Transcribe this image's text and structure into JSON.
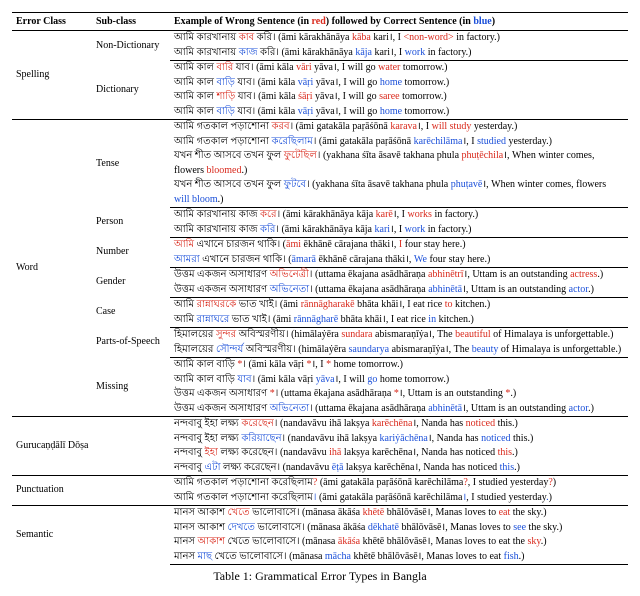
{
  "header": {
    "error_class": "Error Class",
    "sub_class": "Sub-class",
    "example": "Example of Wrong Sentence (in ",
    "red": "red",
    "example2": ") followed by Correct Sentence (in ",
    "blue": "blue",
    "example3": ")"
  },
  "caption": "Table 1: Grammatical Error Types in Bangla",
  "rows": {
    "r1c1": "Spelling",
    "r1c2": "Non-Dictionary",
    "r1e1a": "আমি কারখানায় ",
    "r1e1red": "কাব",
    "r1e1b": " করি। (āmi kārakhānāya ",
    "r1e1redlat": "kāba",
    "r1e1c": " kari।, I ",
    "r1e1reden": "<non-word>",
    "r1e1d": " in factory.)",
    "r1e2a": "আমি কারখানায় ",
    "r1e2blue": "কাজ",
    "r1e2b": " করি। (āmi kārakhānāya ",
    "r1e2bluelat": "kāja",
    "r1e2c": " kari।, I ",
    "r1e2blueen": "work",
    "r1e2d": " in factory.)",
    "r2c2": "Dictionary",
    "r2e1a": "আমি কাল ",
    "r2e1red": "বারি",
    "r2e1b": " যাব। (āmi kāla ",
    "r2e1redlat": "vāri",
    "r2e1c": " yāva।, I will go ",
    "r2e1reden": "water",
    "r2e1d": " tomorrow.)",
    "r2e2a": "আমি কাল ",
    "r2e2blue": "বাড়ি",
    "r2e2b": " যাব। (āmi kāla ",
    "r2e2bluelat": "vāṛi",
    "r2e2c": " yāva।, I will go ",
    "r2e2blueen": "home",
    "r2e2d": " tomorrow.)",
    "r2e3a": "আমি কাল ",
    "r2e3red": "শাড়ি",
    "r2e3b": " যাব। (āmi kāla ",
    "r2e3redlat": "śāṛi",
    "r2e3c": " yāva।, I will go ",
    "r2e3reden": "saree",
    "r2e3d": " tomorrow.)",
    "r2e4a": "আমি কাল ",
    "r2e4blue": "বাড়ি",
    "r2e4b": " যাব। (āmi kāla ",
    "r2e4bluelat": "vāṛi",
    "r2e4c": " yāva।, I will go ",
    "r2e4blueen": "home",
    "r2e4d": " tomorrow.)",
    "r3c1": "Word",
    "r3c2": "Tense",
    "r3e1a": "আমি গতকাল পড়াশোনা ",
    "r3e1red": "করব",
    "r3e1b": "। (āmi gatakāla paṛāśōnā ",
    "r3e1redlat": "karava",
    "r3e1c": "।, I ",
    "r3e1reden": "will study",
    "r3e1d": " yesterday.)",
    "r3e2a": "আমি গতকাল পড়াশোনা ",
    "r3e2blue": "করেছিলাম",
    "r3e2b": "। (āmi gatakāla paṛāśōnā ",
    "r3e2bluelat": "karēchilāma",
    "r3e2c": "।, I ",
    "r3e2blueen": "studied",
    "r3e2d": " yesterday.)",
    "r3e3a": "যখন শীত আসবে তখন ফুল ",
    "r3e3red": "ফুটেছিল",
    "r3e3b": "। (yakhana śīta āsavē takhana phula ",
    "r3e3redlat": "phuṭēchila",
    "r3e3c": "।, When winter comes, flowers ",
    "r3e3reden": "bloomed",
    "r3e3d": ".)",
    "r3e4a": "যখন শীত আসবে তখন ফুল ",
    "r3e4blue": "ফুটবে",
    "r3e4b": "। (yakhana śīta āsavē takhana phula ",
    "r3e4bluelat": "phuṭavē",
    "r3e4c": "।, When winter comes, flowers ",
    "r3e4blueen": "will bloom",
    "r3e4d": ".)",
    "r4c2": "Person",
    "r4e1a": "আমি কারখানায় কাজ ",
    "r4e1red": "করে",
    "r4e1b": "। (āmi kārakhānāya kāja ",
    "r4e1redlat": "karē",
    "r4e1c": "।, I ",
    "r4e1reden": "works",
    "r4e1d": " in factory.)",
    "r4e2a": "আমি কারখানায় কাজ ",
    "r4e2blue": "করি",
    "r4e2b": "। (āmi kārakhānāya kāja ",
    "r4e2bluelat": "kari",
    "r4e2c": "।, I ",
    "r4e2blueen": "work",
    "r4e2d": " in factory.)",
    "r5c2": "Number",
    "r5e1a": "",
    "r5e1red": "আমি",
    "r5e1b": " এখানে চারজন থাকি। (",
    "r5e1redlat": "āmi",
    "r5e1c": " ēkhānē cārajana thāki।, ",
    "r5e1reden": "I",
    "r5e1d": " four stay here.)",
    "r5e2a": "",
    "r5e2blue": "আমরা",
    "r5e2b": " এখানে চারজন থাকি। (",
    "r5e2bluelat": "āmarā",
    "r5e2c": " ēkhānē cārajana thāki।, ",
    "r5e2blueen": "We",
    "r5e2d": " four stay here.)",
    "r6c2": "Gender",
    "r6e1a": "উত্তম একজন অসাধারণ ",
    "r6e1red": "অভিনেত্রী",
    "r6e1b": "। (uttama ēkajana asādhāraṇa ",
    "r6e1redlat": "abhinētrī",
    "r6e1c": "।, Uttam is an outstanding ",
    "r6e1reden": "actress",
    "r6e1d": ".)",
    "r6e2a": "উত্তম একজন অসাধারণ ",
    "r6e2blue": "অভিনেতা",
    "r6e2b": "। (uttama ēkajana asādhāraṇa ",
    "r6e2bluelat": "abhinētā",
    "r6e2c": "।, Uttam is an outstanding ",
    "r6e2blueen": "actor",
    "r6e2d": ".)",
    "r7c2": "Case",
    "r7e1a": "আমি ",
    "r7e1red": "রান্নাঘরকে",
    "r7e1b": " ভাত খাই। (āmi ",
    "r7e1redlat": "rānnāgharakē",
    "r7e1c": " bhāta khāi।, I eat rice ",
    "r7e1reden": "to",
    "r7e1d": " kitchen.)",
    "r7e2a": "আমি ",
    "r7e2blue": "রান্নাঘরে",
    "r7e2b": " ভাত খাই। (āmi ",
    "r7e2bluelat": "rānnāgharē",
    "r7e2c": " bhāta khāi।, I eat rice ",
    "r7e2blueen": "in",
    "r7e2d": " kitchen.)",
    "r8c2": "Parts-of-Speech",
    "r8e1a": "হিমালয়ের ",
    "r8e1red": "সুন্দর",
    "r8e1b": " অবিস্মরণীয়। (himālaẏēra ",
    "r8e1redlat": "sundara",
    "r8e1c": " abismaraṇīẏa।, The ",
    "r8e1reden": "beautiful",
    "r8e1d": " of Himalaya is unforgettable.)",
    "r8e2a": "হিমালয়ের ",
    "r8e2blue": "সৌন্দর্য",
    "r8e2b": " অবিস্মরণীয়। (himālaẏēra ",
    "r8e2bluelat": "saundarya",
    "r8e2c": " abismaraṇīẏa।, The ",
    "r8e2blueen": "beauty",
    "r8e2d": " of Himalaya is unforgettable.)",
    "r9c2": "Missing",
    "r9e1a": "আমি কাল বাড়ি ",
    "r9e1red": "*",
    "r9e1b": "। (āmi kāla vāṛi ",
    "r9e1redlat": "*",
    "r9e1c": "।, I ",
    "r9e1reden": "*",
    "r9e1d": " home tomorrow.)",
    "r9e2a": "আমি কাল বাড়ি ",
    "r9e2blue": "যাব",
    "r9e2b": "। (āmi kāla vāṛi ",
    "r9e2bluelat": "yāva",
    "r9e2c": "।, I will ",
    "r9e2blueen": "go",
    "r9e2d": " home tomorrow.)",
    "r9e3a": "উত্তম একজন অসাধারণ ",
    "r9e3red": "*",
    "r9e3b": "। (uttama ēkajana asādhāraṇa ",
    "r9e3redlat": "*",
    "r9e3c": "।, Uttam is an outstanding ",
    "r9e3reden": "*",
    "r9e3d": ".)",
    "r9e4a": "উত্তম একজন অসাধারণ ",
    "r9e4blue": "অভিনেতা",
    "r9e4b": "। (uttama ēkajana asādhāraṇa ",
    "r9e4bluelat": "abhinētā",
    "r9e4c": "।, Uttam is an outstanding ",
    "r9e4blueen": "actor",
    "r9e4d": ".)",
    "r10c1": "Gurucaṇḍālī  Dōṣa",
    "r10e1a": "নন্দবাবু ইহা লক্ষ্য ",
    "r10e1red": "করেছেন",
    "r10e1b": "। (nandavāvu ihā lakṣya ",
    "r10e1redlat": "karēchēna",
    "r10e1c": "।, Nanda has ",
    "r10e1reden": "noticed",
    "r10e1d": " this.)",
    "r10e2a": "নন্দবাবু ইহা লক্ষ্য ",
    "r10e2blue": "করিয়াছেন",
    "r10e2b": "। (nandavāvu ihā lakṣya ",
    "r10e2bluelat": "kariẏāchēna",
    "r10e2c": "।, Nanda has ",
    "r10e2blueen": "noticed",
    "r10e2d": " this.)",
    "r10e3a": "নন্দবাবু ",
    "r10e3red": "ইহা",
    "r10e3b": " লক্ষ্য করেছেন। (nandavāvu ",
    "r10e3redlat": "ihā",
    "r10e3c": " lakṣya karēchēna।, Nanda has noticed ",
    "r10e3reden": "this",
    "r10e3d": ".)",
    "r10e4a": "নন্দবাবু ",
    "r10e4blue": "এটা",
    "r10e4b": " লক্ষ্য করেছেন। (nandavāvu ",
    "r10e4bluelat": "ēṭā",
    "r10e4c": " lakṣya karēchēna।, Nanda has noticed ",
    "r10e4blueen": "this",
    "r10e4d": ".)",
    "r11c1": "Punctuation",
    "r11e1a": "আমি গতকাল পড়াশোনা করেছিলাম",
    "r11e1red": "?",
    "r11e1b": " (āmi gatakāla paṛāśōnā karēchilāma",
    "r11e1redlat": "?",
    "r11e1c": ", I studied yesterday",
    "r11e1reden": "?",
    "r11e1d": ")",
    "r11e2a": "আমি গতকাল পড়াশোনা করেছিলাম",
    "r11e2blue": "।",
    "r11e2b": " (āmi gatakāla paṛāśōnā karēchilāma",
    "r11e2bluelat": "।",
    "r11e2c": ", I studied yesterday",
    "r11e2blueen": ".",
    "r11e2d": ")",
    "r12c1": "Semantic",
    "r12e1a": "মানস আকাশ ",
    "r12e1red": "খেতে",
    "r12e1b": " ভালোবাসে। (mānasa ākāśa ",
    "r12e1redlat": "khētē",
    "r12e1c": " bhālōvāsē।, Manas loves to ",
    "r12e1reden": "eat",
    "r12e1d": " the sky.)",
    "r12e2a": "মানস আকাশ ",
    "r12e2blue": "দেখতে",
    "r12e2b": " ভালোবাসে। (mānasa ākāśa ",
    "r12e2bluelat": "dēkhatē",
    "r12e2c": " bhālōvāsē।, Manas loves to ",
    "r12e2blueen": "see",
    "r12e2d": " the sky.)",
    "r12e3a": "মানস ",
    "r12e3red": "আকাশ",
    "r12e3b": " খেতে ভালোবাসে। (mānasa ",
    "r12e3redlat": "ākāśa",
    "r12e3c": " khētē bhālōvāsē।, Manas loves to eat the ",
    "r12e3reden": "sky",
    "r12e3d": ".)",
    "r12e4a": "মানস ",
    "r12e4blue": "মাছ",
    "r12e4b": " খেতে ভালোবাসে। (mānasa ",
    "r12e4bluelat": "mācha",
    "r12e4c": " khētē bhālōvāsē।, Manas loves to eat ",
    "r12e4blueen": "fish",
    "r12e4d": ".)"
  }
}
